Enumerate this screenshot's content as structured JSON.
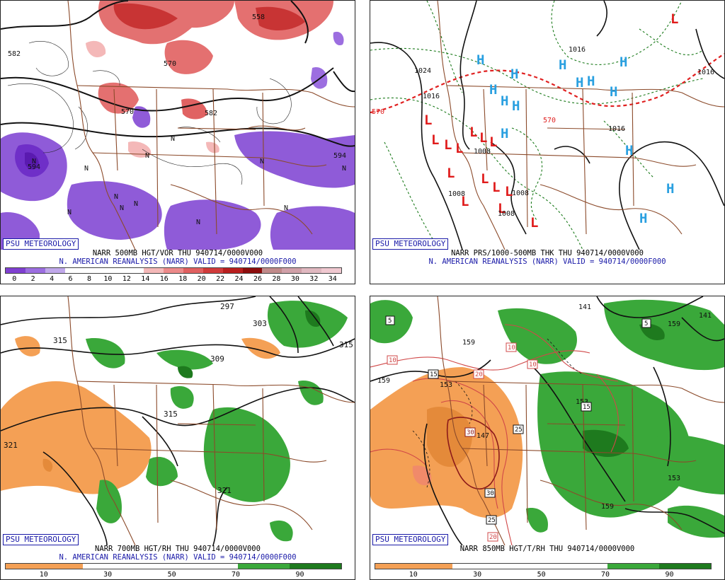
{
  "panels": [
    {
      "name": "500mb-hgt-vor",
      "tag": "PSU METEOROLOGY",
      "title_line1": "NARR 500MB HGT/VOR THU 940714/0000V000",
      "title_line2": "N. AMERICAN REANALYSIS (NARR) VALID = 940714/0000F000",
      "colorbar_colors": [
        "#7f3fd0",
        "#9c6ee0",
        "#c0a8ea",
        "#ffffff",
        "#ffffff",
        "#ffffff",
        "#ffffff",
        "#f4b8b8",
        "#ec8a8a",
        "#e06060",
        "#d03a3a",
        "#b81e1e",
        "#8c0c0c",
        "#c08a8a",
        "#d0a0a8",
        "#e0b8c0",
        "#f0c8d0"
      ],
      "colorbar_labels": [
        "0",
        "2",
        "4",
        "6",
        "8",
        "10",
        "12",
        "14",
        "16",
        "18",
        "20",
        "22",
        "24",
        "26",
        "28",
        "30",
        "32",
        "34"
      ],
      "contour_labels": [
        "582",
        "558",
        "570",
        "594",
        "594",
        "582",
        "570"
      ],
      "symbols": [
        "N",
        "N",
        "N",
        "N",
        "N",
        "N",
        "N",
        "N",
        "N",
        "N",
        "N",
        "N"
      ]
    },
    {
      "name": "prs-thk",
      "tag": "PSU METEOROLOGY",
      "title_line1": "NARR PRS/1000-500MB THK THU 940714/0000V000",
      "title_line2": "N. AMERICAN REANALYSIS (NARR) VALID = 940714/0000F000",
      "contour_labels": [
        "1024",
        "1016",
        "1016",
        "1016",
        "1008",
        "1008",
        "1008",
        "1008",
        "570",
        "570",
        "1016"
      ],
      "highs": [
        "H",
        "H",
        "H",
        "H",
        "H",
        "H",
        "H",
        "H",
        "H",
        "H",
        "H",
        "H",
        "H",
        "H"
      ],
      "lows": [
        "L",
        "L",
        "L",
        "L",
        "L",
        "L",
        "L",
        "L",
        "L",
        "L",
        "L",
        "L",
        "L",
        "L",
        "L"
      ]
    },
    {
      "name": "700mb-hgt-rh",
      "tag": "PSU METEOROLOGY",
      "title_line1": "NARR 700MB HGT/RH THU 940714/0000V000",
      "title_line2": "N. AMERICAN REANALYSIS (NARR) VALID = 940714/0000F000",
      "colorbar_colors": [
        "#f4a055",
        "#f4a055",
        "#f4a055",
        "#ffffff",
        "#ffffff",
        "#ffffff",
        "#ffffff",
        "#ffffff",
        "#ffffff",
        "#3aa83a",
        "#3aa83a",
        "#1e7a1e",
        "#1e7a1e"
      ],
      "colorbar_labels": [
        "10",
        "30",
        "50",
        "70",
        "90"
      ],
      "contour_labels": [
        "315",
        "297",
        "303",
        "309",
        "315",
        "315",
        "321",
        "321"
      ]
    },
    {
      "name": "850mb-hgt-t-rh",
      "tag": "PSU METEOROLOGY",
      "title_line1": "NARR 850MB HGT/T/RH THU 940714/0000V000",
      "colorbar_colors": [
        "#f4a055",
        "#f4a055",
        "#f4a055",
        "#ffffff",
        "#ffffff",
        "#ffffff",
        "#ffffff",
        "#ffffff",
        "#ffffff",
        "#3aa83a",
        "#3aa83a",
        "#1e7a1e",
        "#1e7a1e"
      ],
      "colorbar_labels": [
        "10",
        "30",
        "50",
        "70",
        "90"
      ],
      "contour_labels": [
        "141",
        "153",
        "159",
        "159",
        "159",
        "153",
        "147",
        "153",
        "159",
        "141"
      ],
      "temp_boxes": [
        "5",
        "5",
        "10",
        "10",
        "10",
        "15",
        "20",
        "25",
        "30",
        "30",
        "25",
        "20",
        "15"
      ]
    }
  ]
}
